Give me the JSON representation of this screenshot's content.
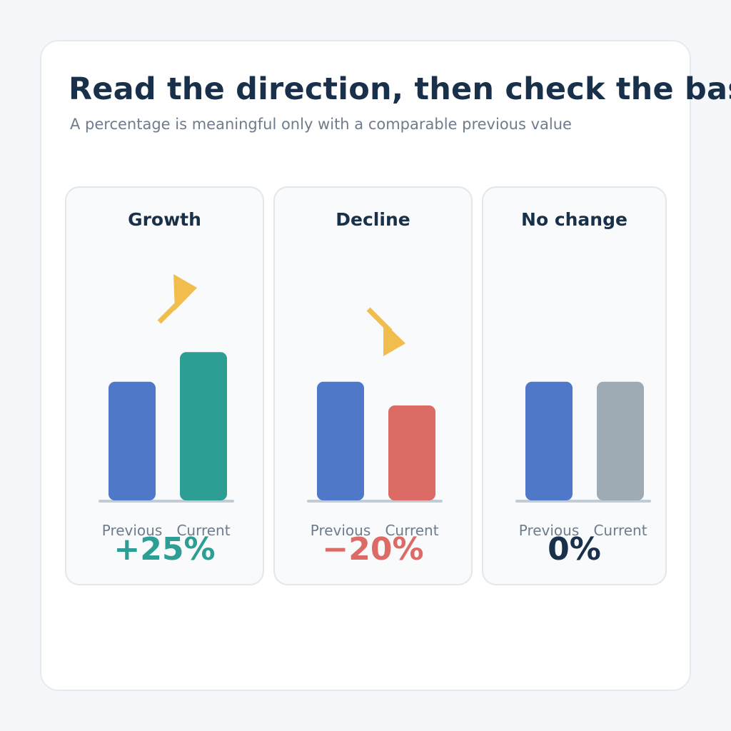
{
  "title": "Read the direction, then check the base",
  "subtitle": "A percentage is meaningful only with a comparable previous value",
  "chart_data": [
    {
      "type": "bar",
      "title": "Growth",
      "categories": [
        "Previous",
        "Current"
      ],
      "values": [
        100,
        125
      ],
      "bar_colors": [
        "#4f78c9",
        "#2c9e94"
      ],
      "change_label": "+25%",
      "change_color": "#2c9e94",
      "arrow": "up",
      "ylim": [
        0,
        160
      ]
    },
    {
      "type": "bar",
      "title": "Decline",
      "categories": [
        "Previous",
        "Current"
      ],
      "values": [
        100,
        80
      ],
      "bar_colors": [
        "#4f78c9",
        "#dc6b66"
      ],
      "change_label": "−20%",
      "change_color": "#dc6b66",
      "arrow": "down",
      "ylim": [
        0,
        160
      ]
    },
    {
      "type": "bar",
      "title": "No change",
      "categories": [
        "Previous",
        "Current"
      ],
      "values": [
        100,
        100
      ],
      "bar_colors": [
        "#4f78c9",
        "#9eabb5"
      ],
      "change_label": "0%",
      "change_color": "#18304a",
      "arrow": "none",
      "ylim": [
        0,
        160
      ]
    }
  ],
  "colors": {
    "arrow": "#f1bd4d",
    "baseline": "#c2ccd4",
    "category_label": "#6e7c8b"
  }
}
